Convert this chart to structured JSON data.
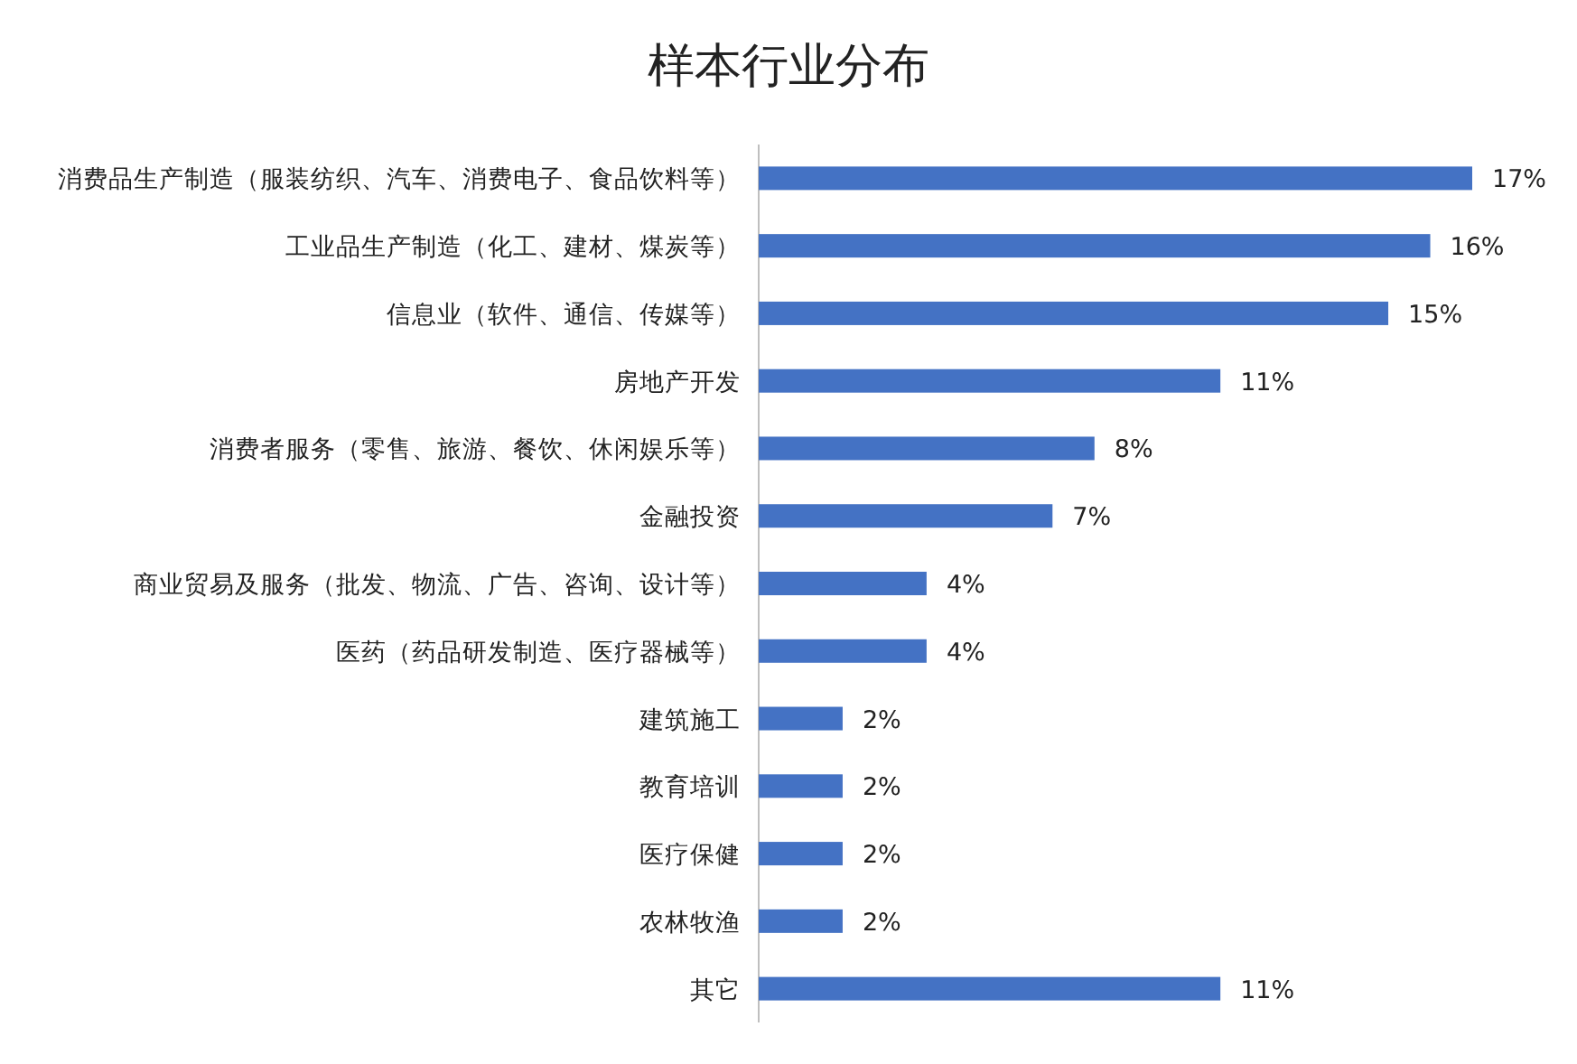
{
  "chart_data": {
    "type": "bar",
    "orientation": "horizontal",
    "title": "样本行业分布",
    "categories": [
      "消费品生产制造（服装纺织、汽车、消费电子、食品饮料等）",
      "工业品生产制造（化工、建材、煤炭等）",
      "信息业（软件、通信、传媒等）",
      "房地产开发",
      "消费者服务（零售、旅游、餐饮、休闲娱乐等）",
      "金融投资",
      "商业贸易及服务（批发、物流、广告、咨询、设计等）",
      "医药（药品研发制造、医疗器械等）",
      "建筑施工",
      "教育培训",
      "医疗保健",
      "农林牧渔",
      "其它"
    ],
    "values": [
      17,
      16,
      15,
      11,
      8,
      7,
      4,
      4,
      2,
      2,
      2,
      2,
      11
    ],
    "value_labels": [
      "17%",
      "16%",
      "15%",
      "11%",
      "8%",
      "7%",
      "4%",
      "4%",
      "2%",
      "2%",
      "2%",
      "2%",
      "11%"
    ],
    "color": "#4472c4"
  }
}
